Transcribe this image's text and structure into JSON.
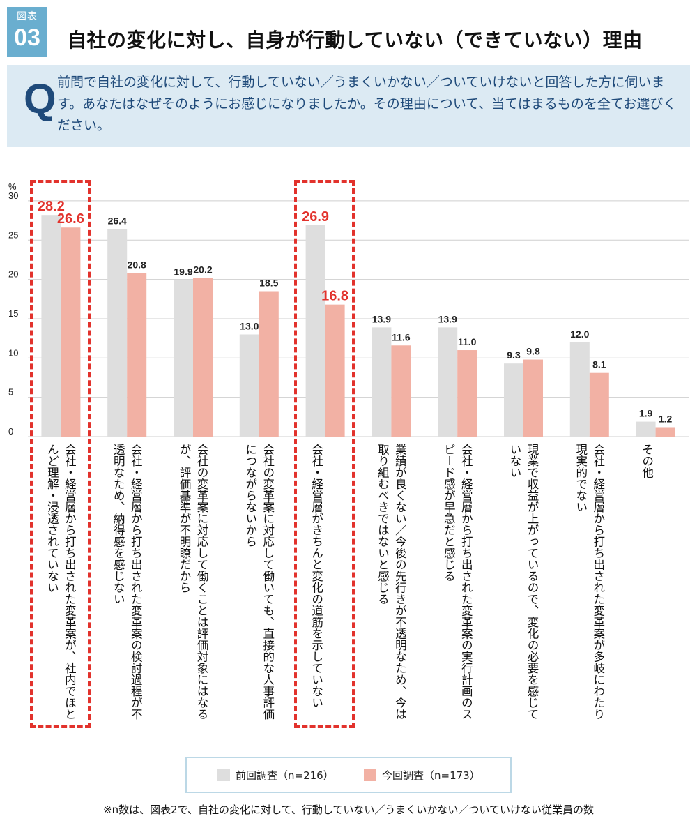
{
  "figure": {
    "label": "図表",
    "number": "03"
  },
  "title": "自社の変化に対し、自身が行動していない（できていない）理由",
  "question": {
    "mark": "Q",
    "text": "前問で自社の変化に対して、行動していない／うまくいかない／ついていけないと回答した方に伺います。あなたはなぜそのようにお感じになりましたか。その理由について、当てはまるものを全てお選びください。"
  },
  "colors": {
    "previous": "#dedede",
    "current": "#f2b1a4",
    "highlight": "#e2322c",
    "qbox": "#dceaf3",
    "badge": "#6aaecf"
  },
  "chart_data": {
    "type": "bar",
    "ylabel": "%",
    "ylim": [
      0,
      30
    ],
    "yticks": [
      0,
      5,
      10,
      15,
      20,
      25,
      30
    ],
    "grid": true,
    "categories": [
      "会社・経営層から打ち出された変革案が、社内でほとんど理解・浸透されていない",
      "会社・経営層から打ち出された変革案の検討過程が不透明なため、納得感を感じない",
      "会社の変革案に対応して働くことは評価対象にはなるが、評価基準が不明瞭だから",
      "会社の変革案に対応して働いても、直接的な人事評価につながらないから",
      "会社・経営層がきちんと変化の道筋を示していない",
      "業績が良くない／今後の先行きが不透明なため、今は取り組むべきではないと感じる",
      "会社・経営層から打ち出された変革案の実行計画のスピード感が早急だと感じる",
      "現業で収益が上がっているので、変化の必要を感じていない",
      "会社・経営層から打ち出された変革案が多岐にわたり現実的でない",
      "その他"
    ],
    "series": [
      {
        "name": "前回調査（n=216）",
        "values": [
          28.2,
          26.4,
          19.9,
          13.0,
          26.9,
          13.9,
          13.9,
          9.3,
          12.0,
          1.9
        ]
      },
      {
        "name": "今回調査（n=173）",
        "values": [
          26.6,
          20.8,
          20.2,
          18.5,
          16.8,
          11.6,
          11.0,
          9.8,
          8.1,
          1.2
        ]
      }
    ],
    "value_labels": [
      [
        "28.2",
        "26.4",
        "19.9",
        "13.0",
        "26.9",
        "13.9",
        "13.9",
        "9.3",
        "12.0",
        "1.9"
      ],
      [
        "26.6",
        "20.8",
        "20.2",
        "18.5",
        "16.8",
        "11.6",
        "11.0",
        "9.8",
        "8.1",
        "1.2"
      ]
    ],
    "highlighted_categories": [
      0,
      4
    ]
  },
  "legend": {
    "previous": "前回調査（n=216）",
    "current": "今回調査（n=173）"
  },
  "note": "※n数は、図表2で、自社の変化に対して、行動していない／うまくいかない／ついていけない従業員の数"
}
